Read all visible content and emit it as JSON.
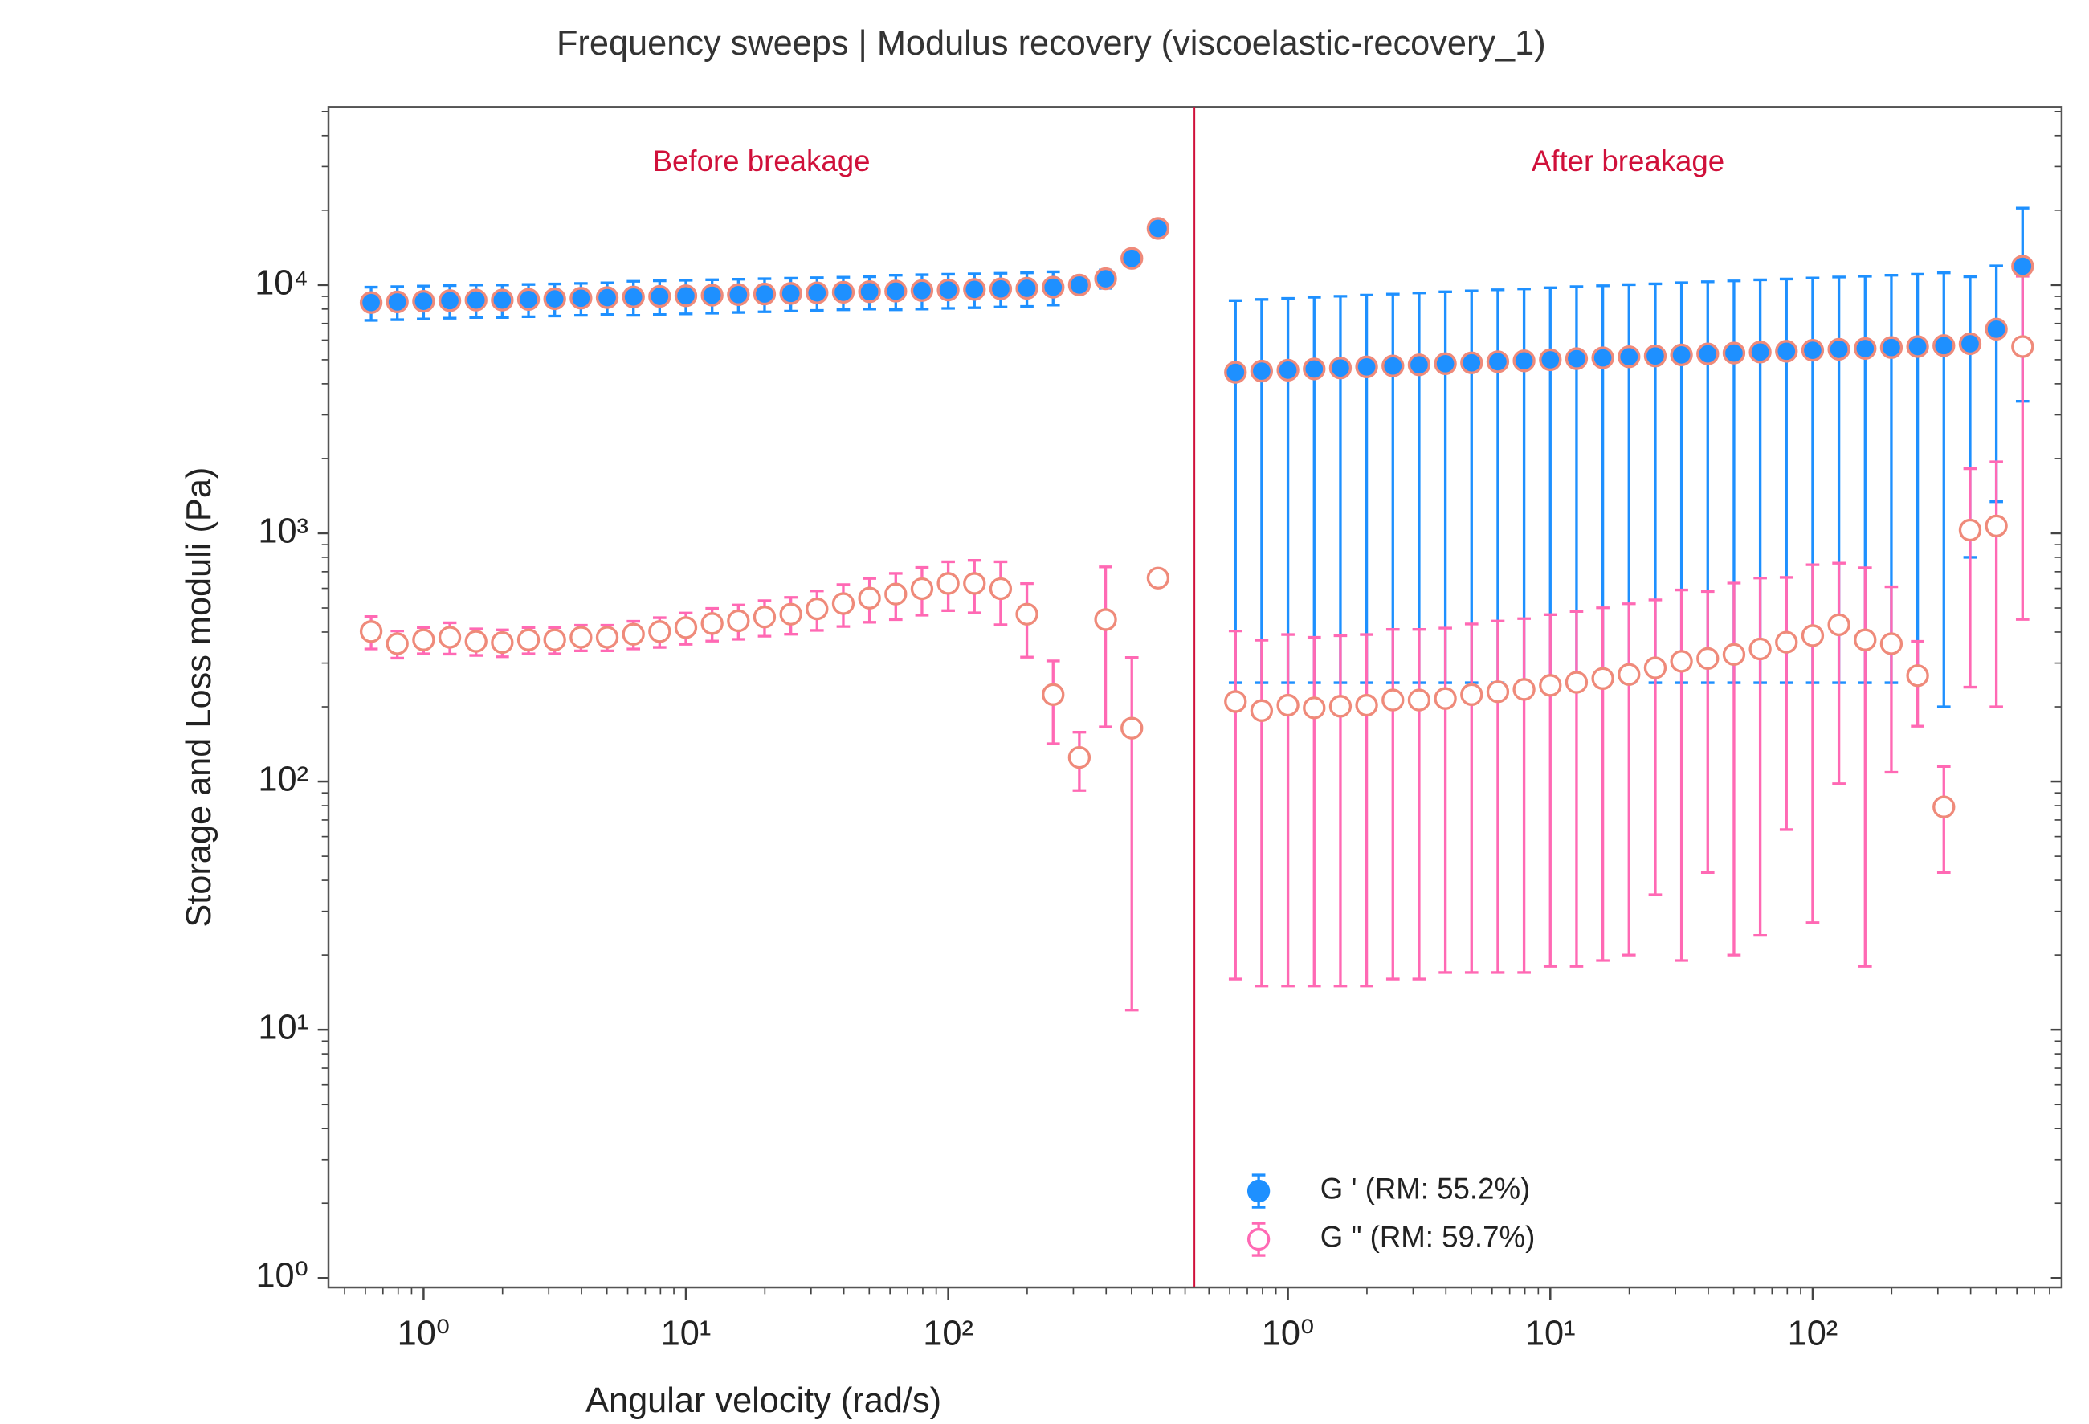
{
  "chart_data": [
    {
      "type": "errorbar",
      "title": "Frequency sweeps | Modulus recovery (viscoelastic-recovery_1)",
      "xlabel": "Angular velocity (rad/s)",
      "ylabel": "Storage and Loss moduli (Pa)",
      "annotation": "Before breakage",
      "annotation_color": "#d0103a",
      "xscale": "log",
      "yscale": "log",
      "xlim": [
        0.434,
        868
      ],
      "ylim": [
        0.916,
        52100
      ],
      "xticks": [
        {
          "value": 1,
          "label": "10⁰"
        },
        {
          "value": 10,
          "label": "10¹"
        },
        {
          "value": 100,
          "label": "10²"
        }
      ],
      "yticks": [
        {
          "value": 1,
          "label": "10⁰"
        },
        {
          "value": 10,
          "label": "10¹"
        },
        {
          "value": 100,
          "label": "10²"
        },
        {
          "value": 1000,
          "label": "10³"
        },
        {
          "value": 10000,
          "label": "10⁴"
        }
      ],
      "x": [
        0.631,
        0.794,
        1,
        1.259,
        1.585,
        1.995,
        2.512,
        3.162,
        3.981,
        5.012,
        6.31,
        7.943,
        10,
        12.59,
        15.85,
        19.95,
        25.12,
        31.62,
        39.81,
        50.12,
        63.1,
        79.43,
        100,
        125.9,
        158.5,
        199.5,
        251.2,
        316.2,
        398.1,
        501.2,
        631
      ],
      "series": [
        {
          "color": "#ff69b4",
          "edgecolor": "#ef8a7a",
          "filled": false,
          "values": [
            402,
            359,
            372,
            381,
            367,
            363,
            372,
            372,
            381,
            381,
            392,
            402,
            417,
            433,
            444,
            460,
            472,
            496,
            521,
            548,
            569,
            598,
            628,
            628,
            598,
            472,
            224,
            125,
            449,
            164,
            660
          ],
          "errors": [
            60,
            45,
            45,
            55,
            45,
            45,
            45,
            45,
            45,
            45,
            50,
            55,
            60,
            65,
            70,
            75,
            80,
            90,
            100,
            110,
            120,
            130,
            140,
            150,
            170,
            155,
            82,
            33,
            283,
            152,
            0
          ]
        },
        {
          "color": "#1e90ff",
          "edgecolor": "#ef8a7a",
          "filled": true,
          "values": [
            8500,
            8550,
            8600,
            8650,
            8700,
            8700,
            8750,
            8800,
            8850,
            8900,
            8950,
            9000,
            9050,
            9100,
            9150,
            9200,
            9250,
            9300,
            9350,
            9400,
            9450,
            9500,
            9550,
            9600,
            9650,
            9700,
            9800,
            10000,
            10600,
            12800,
            16900
          ],
          "errors": [
            1300,
            1300,
            1300,
            1300,
            1300,
            1300,
            1300,
            1300,
            1300,
            1300,
            1400,
            1400,
            1400,
            1400,
            1400,
            1400,
            1400,
            1400,
            1400,
            1400,
            1500,
            1500,
            1500,
            1500,
            1500,
            1500,
            1500,
            0,
            900,
            900,
            0
          ]
        }
      ]
    },
    {
      "type": "errorbar",
      "annotation": "After breakage",
      "annotation_color": "#d0103a",
      "xscale": "log",
      "yscale": "log",
      "xlim": [
        0.44,
        889
      ],
      "ylim": [
        0.916,
        52100
      ],
      "xticks": [
        {
          "value": 1,
          "label": "10⁰"
        },
        {
          "value": 10,
          "label": "10¹"
        },
        {
          "value": 100,
          "label": "10²"
        }
      ],
      "legend": "lower left",
      "x": [
        0.631,
        0.794,
        1,
        1.259,
        1.585,
        1.995,
        2.512,
        3.162,
        3.981,
        5.012,
        6.31,
        7.943,
        10,
        12.59,
        15.85,
        19.95,
        25.12,
        31.62,
        39.81,
        50.12,
        63.1,
        79.43,
        100,
        125.9,
        158.5,
        199.5,
        251.2,
        316.2,
        398.1,
        501.2,
        631
      ],
      "series": [
        {
          "name": "G ' (RM: 55.2%)",
          "color": "#1e90ff",
          "edgecolor": "#ef8a7a",
          "filled": true,
          "values": [
            4450,
            4500,
            4540,
            4590,
            4630,
            4680,
            4720,
            4770,
            4820,
            4860,
            4910,
            4950,
            5000,
            5050,
            5090,
            5140,
            5180,
            5230,
            5280,
            5320,
            5370,
            5410,
            5460,
            5510,
            5550,
            5600,
            5650,
            5700,
            5800,
            6640,
            11900
          ],
          "errors": [
            4200,
            4250,
            4290,
            4340,
            4380,
            4430,
            4470,
            4520,
            4570,
            4610,
            4660,
            4700,
            4750,
            4800,
            4840,
            4890,
            4930,
            4980,
            5030,
            5070,
            5120,
            5160,
            5210,
            5260,
            5300,
            5350,
            5400,
            5500,
            5000,
            5300,
            8500
          ]
        },
        {
          "name": "G \" (RM: 59.7%)",
          "color": "#ff69b4",
          "edgecolor": "#ef8a7a",
          "filled": false,
          "values": [
            210,
            193,
            203,
            198,
            201,
            203,
            213,
            213,
            216,
            224,
            230,
            235,
            244,
            251,
            260,
            270,
            287,
            305,
            313,
            325,
            342,
            364,
            387,
            428,
            372,
            359,
            267,
            79,
            1030,
            1070,
            5650
          ],
          "errors": [
            194,
            178,
            188,
            183,
            186,
            188,
            197,
            197,
            199,
            207,
            213,
            218,
            226,
            233,
            241,
            250,
            252,
            286,
            270,
            305,
            318,
            300,
            360,
            330,
            354,
            250,
            100,
            36,
            790,
            870,
            5200
          ]
        }
      ]
    }
  ]
}
